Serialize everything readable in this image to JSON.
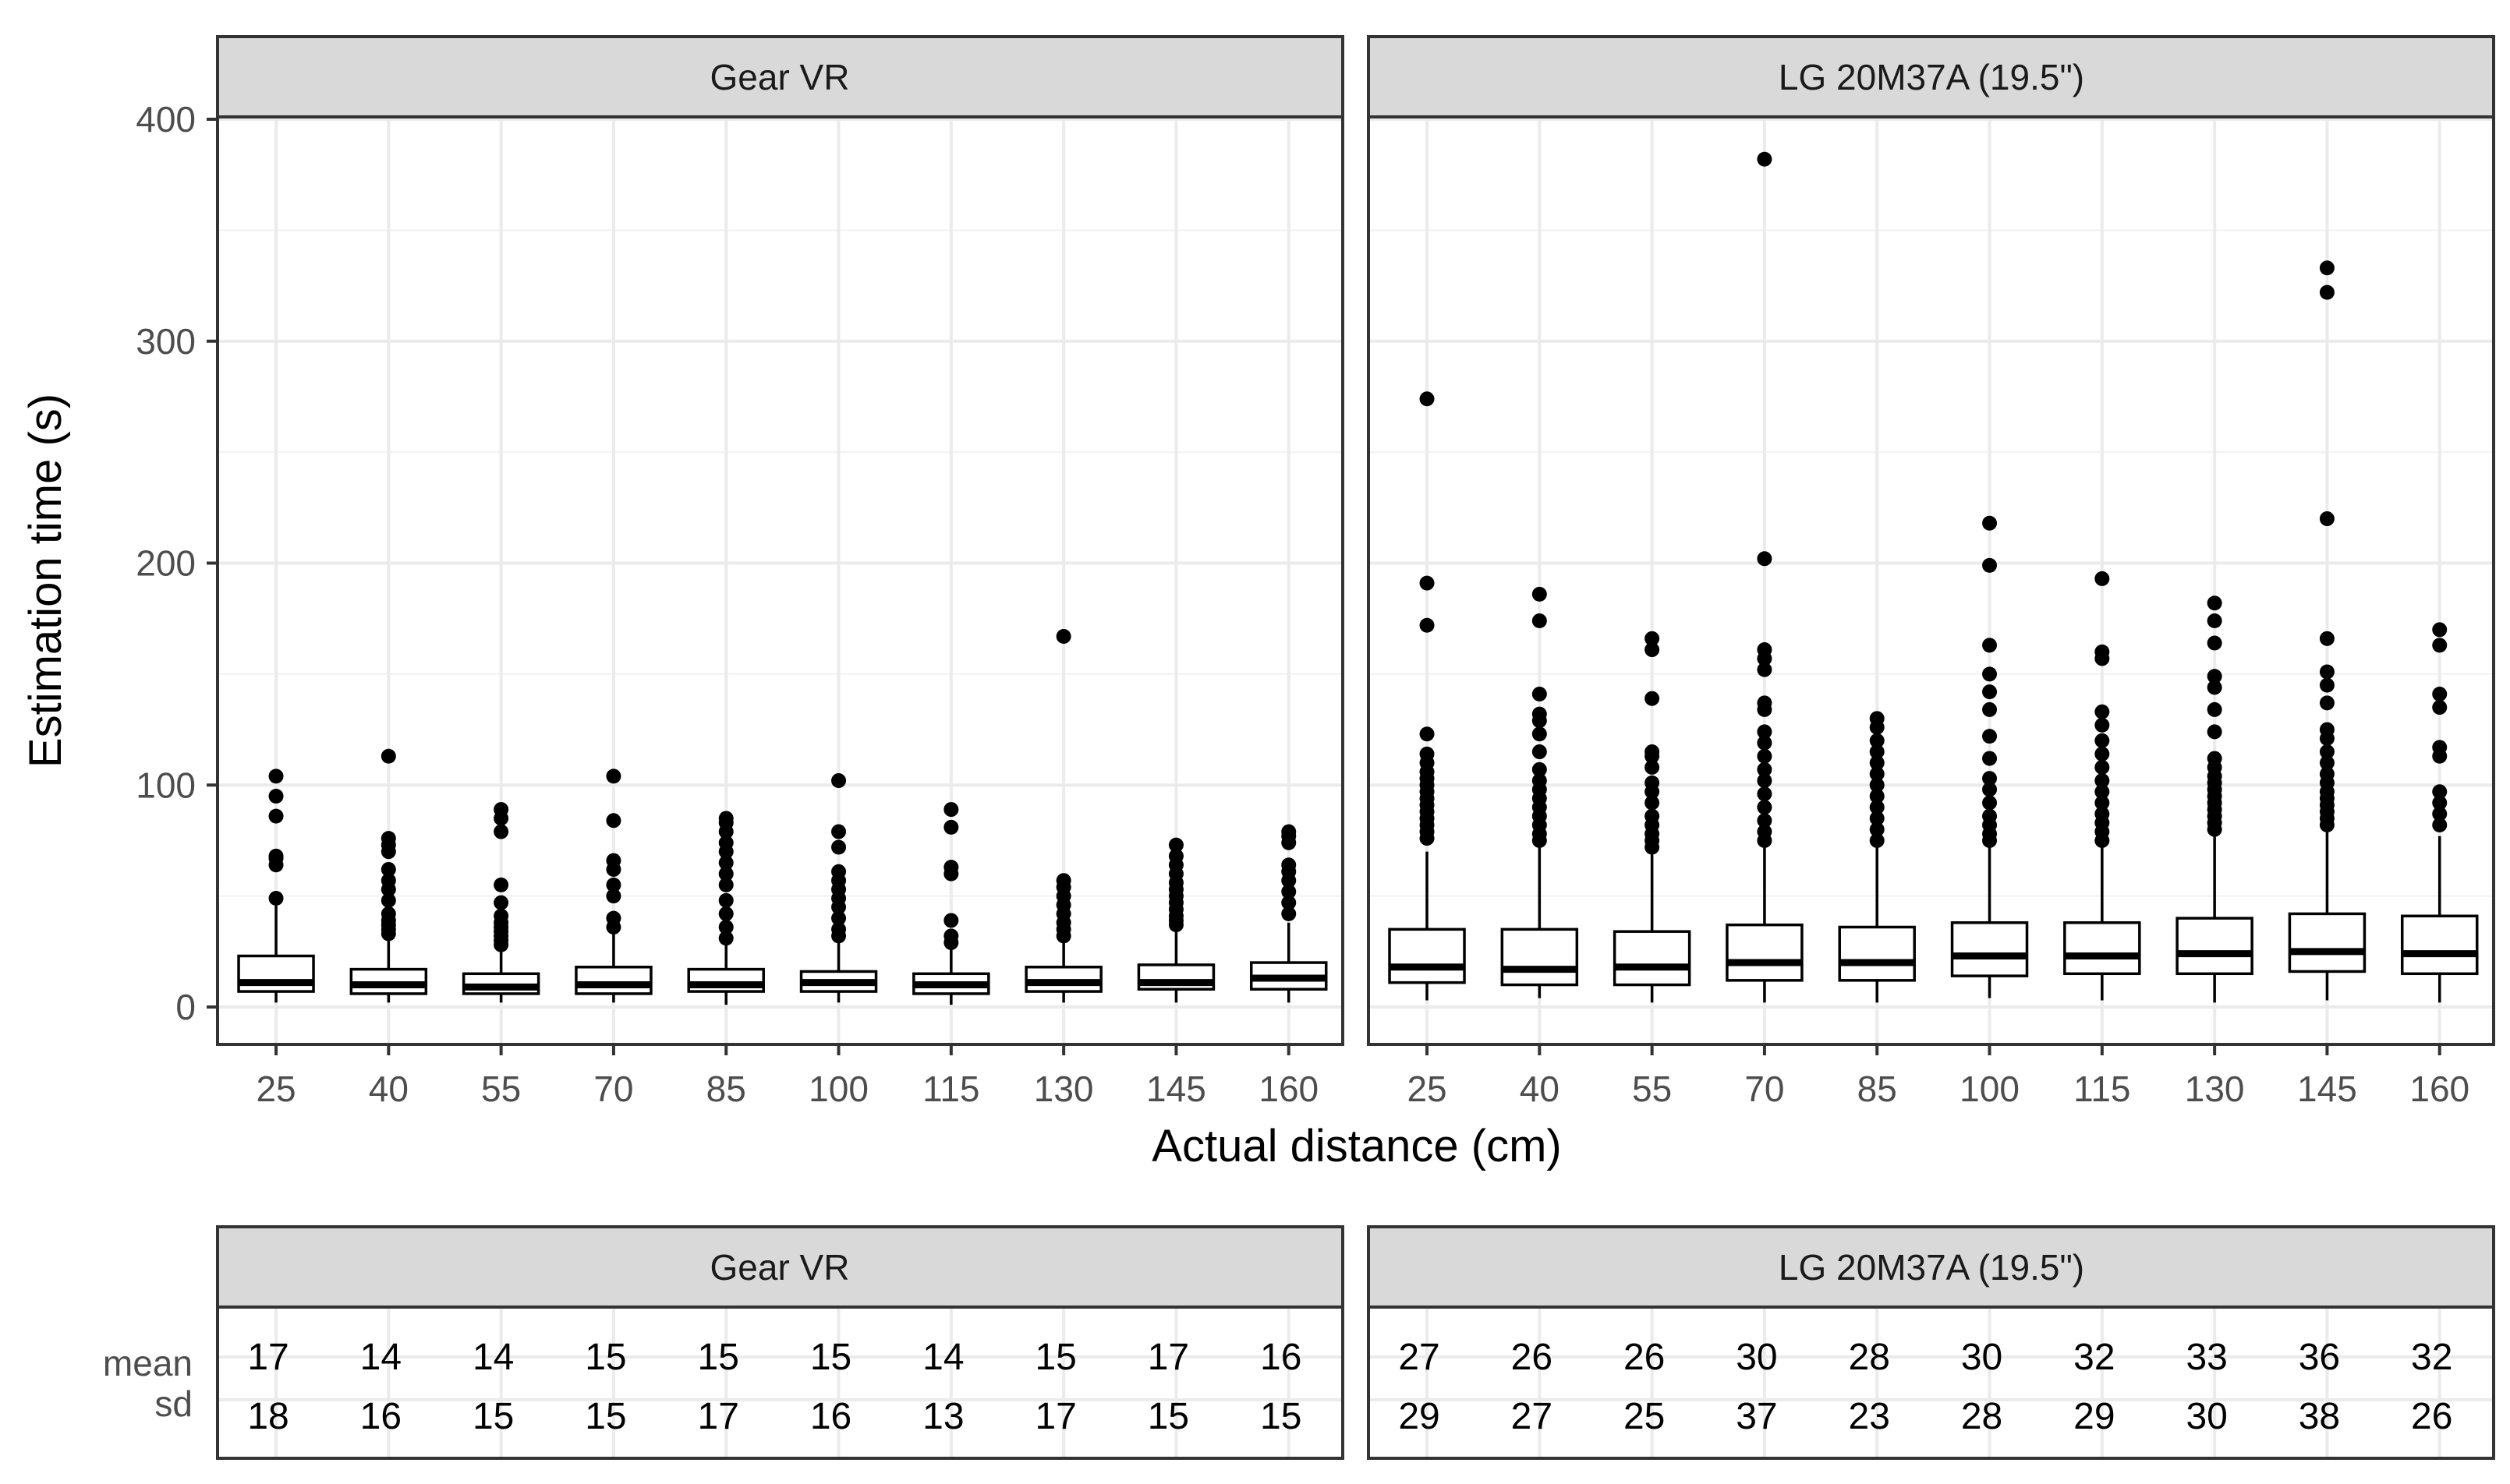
{
  "chart_data": {
    "type": "boxplot",
    "xlabel": "Actual distance (cm)",
    "ylabel": "Estimation time (s)",
    "ylim": [
      -18,
      402
    ],
    "yticks": [
      0,
      100,
      200,
      300,
      400
    ],
    "categories": [
      "25",
      "40",
      "55",
      "70",
      "85",
      "100",
      "115",
      "130",
      "145",
      "160"
    ],
    "panels": [
      {
        "name": "Gear VR",
        "boxes": [
          {
            "x": "25",
            "whisker_low": 2,
            "q1": 7,
            "median": 11,
            "q3": 23,
            "whisker_high": 47,
            "outliers": [
              49,
              64,
              67,
              68,
              86,
              95,
              104
            ]
          },
          {
            "x": "40",
            "whisker_low": 2,
            "q1": 6,
            "median": 10,
            "q3": 17,
            "whisker_high": 31,
            "outliers": [
              33,
              35,
              37,
              39,
              42,
              48,
              53,
              57,
              62,
              70,
              73,
              76,
              113
            ]
          },
          {
            "x": "55",
            "whisker_low": 2,
            "q1": 6,
            "median": 9,
            "q3": 15,
            "whisker_high": 26,
            "outliers": [
              28,
              30,
              32,
              34,
              36,
              38,
              41,
              47,
              55,
              79,
              85,
              89
            ]
          },
          {
            "x": "70",
            "whisker_low": 2,
            "q1": 6,
            "median": 10,
            "q3": 18,
            "whisker_high": 33,
            "outliers": [
              36,
              40,
              50,
              55,
              62,
              66,
              84,
              104
            ]
          },
          {
            "x": "85",
            "whisker_low": 1,
            "q1": 7,
            "median": 10,
            "q3": 17,
            "whisker_high": 29,
            "outliers": [
              31,
              36,
              42,
              48,
              55,
              60,
              65,
              70,
              74,
              79,
              83,
              85
            ]
          },
          {
            "x": "100",
            "whisker_low": 2,
            "q1": 7,
            "median": 11,
            "q3": 16,
            "whisker_high": 30,
            "outliers": [
              32,
              35,
              40,
              45,
              49,
              53,
              57,
              61,
              72,
              79,
              102
            ]
          },
          {
            "x": "115",
            "whisker_low": 1,
            "q1": 6,
            "median": 10,
            "q3": 15,
            "whisker_high": 26,
            "outliers": [
              29,
              32,
              39,
              60,
              63,
              81,
              89
            ]
          },
          {
            "x": "130",
            "whisker_low": 2,
            "q1": 7,
            "median": 11,
            "q3": 18,
            "whisker_high": 30,
            "outliers": [
              32,
              35,
              38,
              42,
              46,
              50,
              54,
              57,
              167
            ]
          },
          {
            "x": "145",
            "whisker_low": 2,
            "q1": 8,
            "median": 11,
            "q3": 19,
            "whisker_high": 35,
            "outliers": [
              37,
              39,
              41,
              44,
              47,
              50,
              53,
              56,
              60,
              64,
              68,
              73
            ]
          },
          {
            "x": "160",
            "whisker_low": 2,
            "q1": 8,
            "median": 13,
            "q3": 20,
            "whisker_high": 38,
            "outliers": [
              42,
              47,
              52,
              57,
              61,
              64,
              74,
              77,
              79
            ]
          }
        ],
        "table": {
          "mean": [
            "17",
            "14",
            "14",
            "15",
            "15",
            "15",
            "14",
            "15",
            "17",
            "16"
          ],
          "sd": [
            "18",
            "16",
            "15",
            "15",
            "17",
            "16",
            "13",
            "17",
            "15",
            "15"
          ]
        }
      },
      {
        "name": "LG 20M37A (19.5\")",
        "boxes": [
          {
            "x": "25",
            "whisker_low": 3,
            "q1": 11,
            "median": 18,
            "q3": 35,
            "whisker_high": 70,
            "outliers": [
              76,
              79,
              82,
              85,
              88,
              91,
              94,
              97,
              100,
              103,
              106,
              110,
              114,
              123,
              172,
              191,
              274
            ]
          },
          {
            "x": "40",
            "whisker_low": 4,
            "q1": 10,
            "median": 17,
            "q3": 35,
            "whisker_high": 72,
            "outliers": [
              75,
              78,
              82,
              86,
              90,
              94,
              98,
              102,
              107,
              115,
              123,
              129,
              132,
              141,
              174,
              186
            ]
          },
          {
            "x": "55",
            "whisker_low": 2,
            "q1": 10,
            "median": 18,
            "q3": 34,
            "whisker_high": 70,
            "outliers": [
              72,
              75,
              78,
              82,
              86,
              92,
              97,
              101,
              108,
              113,
              115,
              139,
              161,
              166
            ]
          },
          {
            "x": "70",
            "whisker_low": 2,
            "q1": 12,
            "median": 20,
            "q3": 37,
            "whisker_high": 72,
            "outliers": [
              75,
              79,
              84,
              90,
              96,
              102,
              107,
              113,
              119,
              124,
              134,
              137,
              152,
              157,
              161,
              202,
              382
            ]
          },
          {
            "x": "85",
            "whisker_low": 2,
            "q1": 12,
            "median": 20,
            "q3": 36,
            "whisker_high": 72,
            "outliers": [
              75,
              80,
              85,
              90,
              95,
              100,
              105,
              110,
              115,
              120,
              126,
              130
            ]
          },
          {
            "x": "100",
            "whisker_low": 4,
            "q1": 14,
            "median": 23,
            "q3": 38,
            "whisker_high": 72,
            "outliers": [
              75,
              78,
              82,
              86,
              92,
              98,
              103,
              112,
              122,
              134,
              142,
              150,
              163,
              199,
              218
            ]
          },
          {
            "x": "115",
            "whisker_low": 3,
            "q1": 15,
            "median": 23,
            "q3": 38,
            "whisker_high": 72,
            "outliers": [
              75,
              79,
              83,
              87,
              92,
              97,
              102,
              108,
              114,
              120,
              127,
              133,
              157,
              160,
              193
            ]
          },
          {
            "x": "130",
            "whisker_low": 2,
            "q1": 15,
            "median": 24,
            "q3": 40,
            "whisker_high": 78,
            "outliers": [
              80,
              83,
              86,
              89,
              92,
              95,
              98,
              101,
              104,
              108,
              112,
              124,
              134,
              144,
              149,
              164,
              174,
              182
            ]
          },
          {
            "x": "145",
            "whisker_low": 3,
            "q1": 16,
            "median": 25,
            "q3": 42,
            "whisker_high": 80,
            "outliers": [
              82,
              85,
              88,
              91,
              94,
              97,
              101,
              105,
              110,
              115,
              121,
              125,
              137,
              145,
              151,
              166,
              220,
              322,
              333
            ]
          },
          {
            "x": "160",
            "whisker_low": 2,
            "q1": 15,
            "median": 24,
            "q3": 41,
            "whisker_high": 77,
            "outliers": [
              82,
              87,
              92,
              97,
              113,
              117,
              135,
              141,
              163,
              170
            ]
          }
        ],
        "table": {
          "mean": [
            "27",
            "26",
            "26",
            "30",
            "28",
            "30",
            "32",
            "33",
            "36",
            "32"
          ],
          "sd": [
            "29",
            "27",
            "25",
            "37",
            "23",
            "28",
            "29",
            "30",
            "38",
            "26"
          ]
        }
      }
    ],
    "table_row_labels": [
      "mean",
      "sd"
    ],
    "grid": true
  }
}
